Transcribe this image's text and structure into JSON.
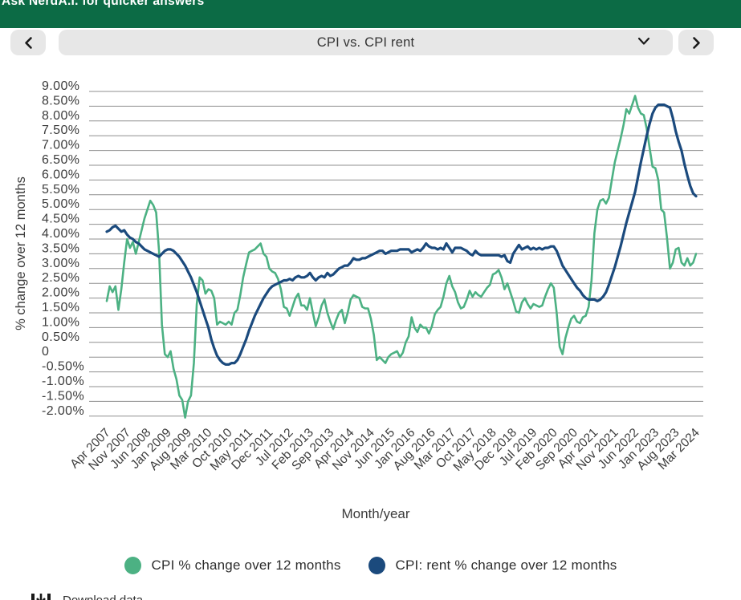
{
  "banner": {
    "text": "Ask NerdA.I. for quicker answers",
    "bg_color": "#0c6b45"
  },
  "selector": {
    "selected_option": "CPI vs. CPI rent",
    "prev_icon": "chevron-left",
    "next_icon": "chevron-right",
    "caret_icon": "chevron-down"
  },
  "footer": {
    "download_label": "Download data"
  },
  "chart": {
    "y_axis_title": "% change over 12 months",
    "x_axis_title": "Month/year",
    "y_tick_labels": [
      "9.00%",
      "8.50%",
      "8.00%",
      "7.50%",
      "7.00%",
      "6.50%",
      "6.00%",
      "5.50%",
      "5.00%",
      "4.50%",
      "4.00%",
      "3.50%",
      "3.00%",
      "2.50%",
      "2.00%",
      "1.50%",
      "1.00%",
      "0.50%",
      "0",
      "-0.50%",
      "-1.00%",
      "-1.50%",
      "-2.00%"
    ],
    "grid_color": "#8f8f8f",
    "text_color": "#3c3c3c"
  },
  "legend": {
    "items": [
      {
        "label": "CPI % change over 12 months",
        "color": "#4cb183"
      },
      {
        "label": "CPI: rent % change over 12 months",
        "color": "#1b4a7d"
      }
    ]
  },
  "chart_data": {
    "type": "line",
    "x_start": "Apr 2007",
    "x_end": "Mar 2024",
    "x_interval": "monthly",
    "x_tick_every_n_months": 7,
    "x_tick_labels": [
      "Apr 2007",
      "Nov 2007",
      "Jun 2008",
      "Jan 2009",
      "Aug 2009",
      "Mar 2010",
      "Oct 2010",
      "May 2011",
      "Dec 2011",
      "Jul 2012",
      "Feb 2013",
      "Sep 2013",
      "Apr 2014",
      "Nov 2014",
      "Jun 2015",
      "Jan 2016",
      "Aug 2016",
      "Mar 2017",
      "Oct 2017",
      "May 2018",
      "Dec 2018",
      "Jul 2019",
      "Feb 2020",
      "Sep 2020",
      "Apr 2021",
      "Nov 2021",
      "Jun 2022",
      "Jan 2023",
      "Aug 2023",
      "Mar 2024"
    ],
    "ylabel": "% change over 12 months",
    "xlabel": "Month/year",
    "ylim": [
      -2.0,
      9.0
    ],
    "y_step": 0.5,
    "grid": true,
    "legend_position": "bottom",
    "series": [
      {
        "name": "CPI % change over 12 months",
        "color": "#4cb183",
        "values": [
          1.9,
          2.4,
          2.2,
          2.4,
          1.6,
          2.3,
          3.2,
          4.0,
          3.7,
          3.9,
          3.5,
          3.9,
          4.3,
          4.7,
          5.0,
          5.3,
          5.15,
          4.9,
          3.6,
          1.1,
          0.1,
          0.0,
          0.2,
          -0.4,
          -0.75,
          -1.3,
          -1.45,
          -2.05,
          -1.5,
          -1.3,
          -0.2,
          1.8,
          2.7,
          2.6,
          2.15,
          2.3,
          2.25,
          2.0,
          1.1,
          1.2,
          1.15,
          1.1,
          1.2,
          1.1,
          1.5,
          1.6,
          2.1,
          2.7,
          3.15,
          3.55,
          3.6,
          3.65,
          3.75,
          3.85,
          3.5,
          3.4,
          3.0,
          2.9,
          2.85,
          2.65,
          2.3,
          1.7,
          1.65,
          1.4,
          1.7,
          2.0,
          2.15,
          1.75,
          1.75,
          1.6,
          2.0,
          1.5,
          1.05,
          1.35,
          1.75,
          1.95,
          1.5,
          1.2,
          0.95,
          1.25,
          1.5,
          1.6,
          1.15,
          1.5,
          1.95,
          2.1,
          2.05,
          2.0,
          1.7,
          1.65,
          1.65,
          1.3,
          0.75,
          -0.1,
          0.0,
          -0.1,
          -0.2,
          0.0,
          0.1,
          0.15,
          0.2,
          0.0,
          0.15,
          0.5,
          0.7,
          1.35,
          1.0,
          0.85,
          1.1,
          1.0,
          1.0,
          0.8,
          1.05,
          1.45,
          1.6,
          1.7,
          2.05,
          2.5,
          2.75,
          2.4,
          2.2,
          1.85,
          1.65,
          1.7,
          1.95,
          2.25,
          2.05,
          2.2,
          2.1,
          2.05,
          2.2,
          2.35,
          2.45,
          2.8,
          2.85,
          2.95,
          2.7,
          2.3,
          2.5,
          2.2,
          1.9,
          1.55,
          1.5,
          1.85,
          2.0,
          1.8,
          1.65,
          1.8,
          1.75,
          1.7,
          1.75,
          2.05,
          2.3,
          2.5,
          2.35,
          1.5,
          0.35,
          0.1,
          0.65,
          1.0,
          1.3,
          1.4,
          1.2,
          1.15,
          1.35,
          1.4,
          1.7,
          2.6,
          4.2,
          5.0,
          5.3,
          5.35,
          5.2,
          5.4,
          6.0,
          6.6,
          7.0,
          7.4,
          7.85,
          8.4,
          8.25,
          8.55,
          8.85,
          8.45,
          8.25,
          8.2,
          7.75,
          7.1,
          6.45,
          6.4,
          6.0,
          5.0,
          4.9,
          4.05,
          3.0,
          3.2,
          3.65,
          3.7,
          3.2,
          3.1,
          3.35,
          3.1,
          3.2,
          3.5
        ]
      },
      {
        "name": "CPI: rent % change over 12 months",
        "color": "#1b4a7d",
        "values": [
          4.25,
          4.3,
          4.4,
          4.45,
          4.35,
          4.25,
          4.3,
          4.15,
          4.05,
          4.0,
          3.9,
          3.85,
          3.75,
          3.65,
          3.6,
          3.55,
          3.5,
          3.45,
          3.4,
          3.5,
          3.6,
          3.65,
          3.65,
          3.6,
          3.5,
          3.4,
          3.25,
          3.1,
          2.9,
          2.7,
          2.45,
          2.2,
          1.9,
          1.6,
          1.3,
          1.0,
          0.6,
          0.3,
          0.05,
          -0.1,
          -0.2,
          -0.25,
          -0.25,
          -0.2,
          -0.2,
          -0.1,
          0.1,
          0.35,
          0.6,
          0.9,
          1.15,
          1.4,
          1.6,
          1.8,
          2.0,
          2.15,
          2.3,
          2.4,
          2.45,
          2.5,
          2.55,
          2.6,
          2.6,
          2.65,
          2.6,
          2.7,
          2.75,
          2.7,
          2.7,
          2.75,
          2.85,
          2.7,
          2.6,
          2.7,
          2.75,
          2.7,
          2.85,
          2.75,
          2.8,
          2.9,
          3.0,
          3.05,
          3.1,
          3.1,
          3.2,
          3.35,
          3.3,
          3.3,
          3.35,
          3.35,
          3.4,
          3.45,
          3.5,
          3.55,
          3.6,
          3.6,
          3.5,
          3.55,
          3.6,
          3.6,
          3.6,
          3.65,
          3.65,
          3.65,
          3.65,
          3.55,
          3.6,
          3.65,
          3.6,
          3.7,
          3.85,
          3.75,
          3.7,
          3.7,
          3.65,
          3.7,
          3.65,
          3.85,
          3.7,
          3.55,
          3.7,
          3.7,
          3.7,
          3.65,
          3.6,
          3.5,
          3.45,
          3.6,
          3.5,
          3.45,
          3.45,
          3.45,
          3.45,
          3.45,
          3.45,
          3.45,
          3.4,
          3.45,
          3.25,
          3.2,
          3.5,
          3.65,
          3.8,
          3.65,
          3.7,
          3.75,
          3.65,
          3.7,
          3.65,
          3.7,
          3.65,
          3.7,
          3.7,
          3.75,
          3.75,
          3.6,
          3.35,
          3.1,
          2.95,
          2.8,
          2.65,
          2.5,
          2.35,
          2.25,
          2.1,
          2.0,
          1.95,
          1.95,
          1.95,
          1.9,
          1.95,
          2.05,
          2.2,
          2.45,
          2.75,
          3.05,
          3.4,
          3.75,
          4.15,
          4.55,
          4.9,
          5.25,
          5.6,
          6.1,
          6.6,
          7.05,
          7.5,
          7.9,
          8.25,
          8.45,
          8.55,
          8.55,
          8.55,
          8.5,
          8.45,
          8.1,
          7.65,
          7.3,
          7.0,
          6.55,
          6.15,
          5.8,
          5.55,
          5.45
        ]
      }
    ]
  }
}
